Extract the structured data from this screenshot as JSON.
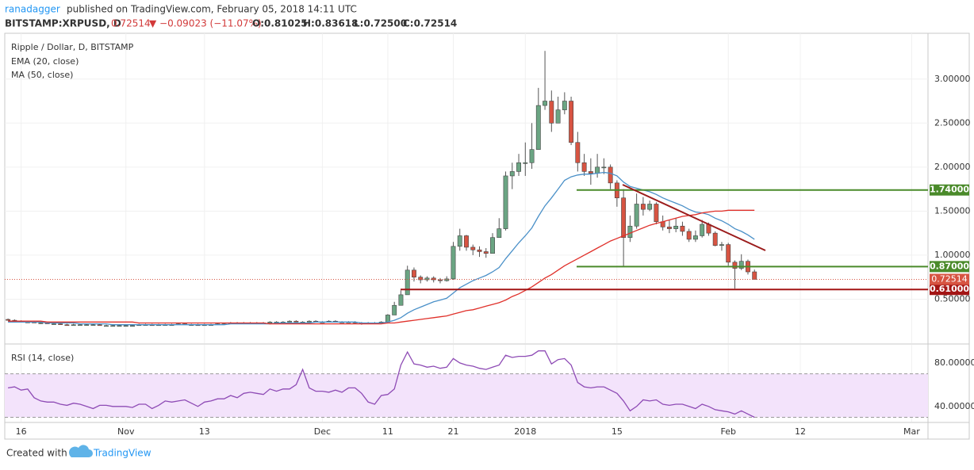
{
  "header": {
    "author": "ranadagger",
    "published": "published on TradingView.com, February 05, 2018 14:11 UTC",
    "symbol": "BITSTAMP:XRPUSD, D",
    "last": "0.72514",
    "change": "▼ −0.09023 (−11.07%)",
    "ohlc": [
      "O:0.81025",
      "H:0.83618",
      "L:0.72500",
      "C:0.72514"
    ]
  },
  "chart_data": [
    {
      "type": "candlestick",
      "title": "Ripple / Dollar, D, BITSTAMP",
      "categories": [
        null,
        null,
        "16",
        null,
        null,
        null,
        null,
        null,
        null,
        null,
        null,
        null,
        null,
        null,
        null,
        null,
        null,
        null,
        "Nov",
        null,
        null,
        null,
        null,
        null,
        null,
        null,
        null,
        null,
        null,
        null,
        "13",
        null,
        null,
        null,
        null,
        null,
        null,
        null,
        null,
        null,
        null,
        null,
        null,
        null,
        null,
        null,
        null,
        null,
        "Dec",
        null,
        null,
        null,
        null,
        null,
        null,
        null,
        null,
        null,
        "11",
        null,
        null,
        null,
        null,
        null,
        null,
        null,
        null,
        null,
        "21",
        null,
        null,
        null,
        null,
        null,
        null,
        null,
        null,
        null,
        null,
        "2018",
        null,
        null,
        null,
        null,
        null,
        null,
        null,
        null,
        null,
        null,
        null,
        null,
        null,
        "15",
        null,
        null,
        null,
        null,
        null,
        null,
        null,
        null,
        null,
        null,
        null,
        null,
        null,
        null,
        null,
        null,
        "Feb",
        null,
        null,
        null,
        null,
        null,
        null,
        null,
        null,
        null,
        null,
        "12",
        null,
        null,
        null,
        null,
        null,
        null,
        null,
        null,
        null,
        null,
        null,
        null,
        null,
        null,
        null,
        null,
        "Mar",
        null,
        null
      ],
      "open": [
        0.27,
        0.26,
        0.25,
        0.24,
        0.24,
        0.23,
        0.23,
        0.22,
        0.22,
        0.21,
        0.2,
        0.21,
        0.21,
        0.21,
        0.21,
        0.2,
        0.2,
        0.2,
        0.2,
        0.2,
        0.2,
        0.21,
        0.21,
        0.2,
        0.21,
        0.21,
        0.21,
        0.22,
        0.21,
        0.21,
        0.2,
        0.21,
        0.21,
        0.22,
        0.22,
        0.23,
        0.23,
        0.23,
        0.23,
        0.23,
        0.23,
        0.24,
        0.24,
        0.24,
        0.25,
        0.24,
        0.24,
        0.25,
        0.24,
        0.24,
        0.25,
        0.24,
        0.24,
        0.24,
        0.23,
        0.22,
        0.23,
        0.23,
        0.24,
        0.32,
        0.43,
        0.55,
        0.83,
        0.75,
        0.72,
        0.74,
        0.72,
        0.71,
        0.73,
        1.1,
        1.22,
        1.09,
        1.06,
        1.04,
        1.02,
        1.2,
        1.3,
        1.9,
        1.95,
        2.05,
        2.05,
        2.2,
        2.7,
        2.75,
        2.5,
        2.65,
        2.75,
        2.28,
        2.05,
        1.95,
        1.93,
        2.0,
        2.0,
        1.82,
        1.65,
        1.2,
        1.33,
        1.58,
        1.52,
        1.58,
        1.38,
        1.32,
        1.3,
        1.33,
        1.27,
        1.18,
        1.22,
        1.35,
        1.25,
        1.11,
        1.12,
        0.92,
        0.85,
        0.93,
        0.81025,
        null,
        null,
        null,
        null,
        null,
        null,
        null,
        null,
        null,
        null,
        null,
        null,
        null,
        null,
        null,
        null,
        null,
        null,
        null,
        null,
        null,
        null,
        null,
        null,
        null,
        null
      ],
      "high": [
        0.28,
        0.27,
        0.26,
        0.25,
        0.25,
        0.24,
        0.24,
        0.23,
        0.23,
        0.22,
        0.22,
        0.22,
        0.22,
        0.22,
        0.22,
        0.21,
        0.21,
        0.21,
        0.21,
        0.21,
        0.22,
        0.22,
        0.22,
        0.22,
        0.22,
        0.22,
        0.23,
        0.23,
        0.22,
        0.22,
        0.22,
        0.22,
        0.23,
        0.23,
        0.24,
        0.24,
        0.24,
        0.24,
        0.24,
        0.24,
        0.25,
        0.25,
        0.25,
        0.26,
        0.26,
        0.25,
        0.26,
        0.26,
        0.25,
        0.26,
        0.26,
        0.25,
        0.25,
        0.25,
        0.24,
        0.24,
        0.24,
        0.25,
        0.33,
        0.47,
        0.6,
        0.88,
        0.86,
        0.77,
        0.76,
        0.76,
        0.74,
        0.76,
        1.15,
        1.3,
        1.23,
        1.12,
        1.1,
        1.08,
        1.25,
        1.42,
        1.95,
        2.05,
        2.15,
        2.28,
        2.5,
        2.9,
        3.32,
        2.87,
        2.8,
        2.85,
        2.8,
        2.4,
        2.15,
        2.1,
        2.15,
        2.1,
        2.03,
        1.85,
        1.75,
        1.45,
        1.7,
        1.66,
        1.62,
        1.6,
        1.45,
        1.4,
        1.42,
        1.38,
        1.3,
        1.28,
        1.4,
        1.37,
        1.27,
        1.15,
        1.14,
        0.94,
        1.01,
        0.95,
        0.83618,
        null,
        null,
        null,
        null,
        null,
        null,
        null,
        null,
        null,
        null,
        null,
        null,
        null,
        null,
        null,
        null,
        null,
        null,
        null,
        null,
        null,
        null,
        null,
        null,
        null,
        null
      ],
      "low": [
        0.26,
        0.25,
        0.24,
        0.23,
        0.23,
        0.22,
        0.22,
        0.21,
        0.21,
        0.2,
        0.2,
        0.2,
        0.2,
        0.2,
        0.2,
        0.19,
        0.19,
        0.19,
        0.19,
        0.19,
        0.2,
        0.2,
        0.2,
        0.2,
        0.2,
        0.2,
        0.21,
        0.21,
        0.2,
        0.2,
        0.2,
        0.2,
        0.21,
        0.21,
        0.22,
        0.22,
        0.22,
        0.22,
        0.22,
        0.22,
        0.23,
        0.23,
        0.23,
        0.24,
        0.24,
        0.23,
        0.24,
        0.24,
        0.23,
        0.24,
        0.24,
        0.23,
        0.23,
        0.22,
        0.21,
        0.22,
        0.22,
        0.23,
        0.24,
        0.32,
        0.43,
        0.55,
        0.7,
        0.68,
        0.7,
        0.69,
        0.68,
        0.7,
        0.72,
        1.05,
        1.05,
        1.0,
        0.98,
        0.97,
        1.02,
        1.2,
        1.28,
        1.75,
        1.9,
        1.9,
        1.98,
        2.2,
        2.65,
        2.4,
        2.5,
        2.6,
        2.25,
        1.95,
        1.9,
        1.8,
        1.88,
        1.92,
        1.75,
        1.55,
        0.87,
        1.15,
        1.3,
        1.45,
        1.5,
        1.35,
        1.28,
        1.25,
        1.26,
        1.22,
        1.15,
        1.15,
        1.2,
        1.22,
        1.1,
        1.05,
        0.88,
        0.62,
        0.83,
        0.78,
        0.725,
        null,
        null,
        null,
        null,
        null,
        null,
        null,
        null,
        null,
        null,
        null,
        null,
        null,
        null,
        null,
        null,
        null,
        null,
        null,
        null,
        null,
        null,
        null,
        null,
        null,
        null
      ],
      "close": [
        0.26,
        0.25,
        0.24,
        0.24,
        0.23,
        0.23,
        0.22,
        0.22,
        0.21,
        0.2,
        0.21,
        0.21,
        0.21,
        0.21,
        0.2,
        0.2,
        0.2,
        0.2,
        0.2,
        0.2,
        0.21,
        0.21,
        0.2,
        0.21,
        0.21,
        0.21,
        0.22,
        0.21,
        0.21,
        0.2,
        0.21,
        0.21,
        0.22,
        0.22,
        0.23,
        0.23,
        0.23,
        0.23,
        0.23,
        0.23,
        0.24,
        0.24,
        0.24,
        0.25,
        0.24,
        0.24,
        0.25,
        0.24,
        0.24,
        0.25,
        0.24,
        0.24,
        0.24,
        0.23,
        0.22,
        0.23,
        0.23,
        0.24,
        0.32,
        0.43,
        0.55,
        0.83,
        0.75,
        0.72,
        0.74,
        0.72,
        0.71,
        0.73,
        1.1,
        1.22,
        1.09,
        1.06,
        1.04,
        1.02,
        1.2,
        1.3,
        1.9,
        1.95,
        2.05,
        2.05,
        2.2,
        2.7,
        2.75,
        2.5,
        2.65,
        2.75,
        2.28,
        2.05,
        1.95,
        1.93,
        2.0,
        2.0,
        1.82,
        1.65,
        1.2,
        1.33,
        1.58,
        1.52,
        1.58,
        1.38,
        1.32,
        1.3,
        1.33,
        1.27,
        1.18,
        1.22,
        1.35,
        1.25,
        1.11,
        1.12,
        0.92,
        0.85,
        0.93,
        0.81,
        0.72514,
        null,
        null,
        null,
        null,
        null,
        null,
        null,
        null,
        null,
        null,
        null,
        null,
        null,
        null,
        null,
        null,
        null,
        null,
        null,
        null,
        null,
        null,
        null,
        null,
        null,
        null
      ],
      "up_color": "#6ba583",
      "down_color": "#d75442",
      "series": [
        {
          "name": "EMA (20, close)",
          "color": "#4a90c8",
          "values": [
            0.24,
            0.24,
            0.24,
            0.24,
            0.24,
            0.24,
            0.23,
            0.23,
            0.23,
            0.23,
            0.23,
            0.22,
            0.22,
            0.22,
            0.22,
            0.22,
            0.21,
            0.21,
            0.21,
            0.21,
            0.21,
            0.21,
            0.21,
            0.21,
            0.21,
            0.21,
            0.21,
            0.21,
            0.21,
            0.21,
            0.21,
            0.21,
            0.21,
            0.21,
            0.22,
            0.22,
            0.22,
            0.22,
            0.22,
            0.22,
            0.22,
            0.23,
            0.23,
            0.23,
            0.23,
            0.23,
            0.23,
            0.24,
            0.24,
            0.24,
            0.24,
            0.24,
            0.24,
            0.24,
            0.23,
            0.23,
            0.23,
            0.23,
            0.24,
            0.26,
            0.29,
            0.34,
            0.38,
            0.41,
            0.44,
            0.47,
            0.49,
            0.51,
            0.57,
            0.63,
            0.67,
            0.71,
            0.74,
            0.77,
            0.81,
            0.86,
            0.96,
            1.05,
            1.14,
            1.22,
            1.31,
            1.44,
            1.56,
            1.65,
            1.75,
            1.85,
            1.89,
            1.91,
            1.92,
            1.92,
            1.93,
            1.94,
            1.93,
            1.9,
            1.83,
            1.78,
            1.76,
            1.74,
            1.72,
            1.69,
            1.65,
            1.62,
            1.59,
            1.56,
            1.52,
            1.49,
            1.48,
            1.46,
            1.42,
            1.39,
            1.35,
            1.3,
            1.27,
            1.23,
            1.18,
            null,
            null,
            null,
            null,
            null,
            null,
            null,
            null,
            null,
            null,
            null,
            null,
            null,
            null,
            null,
            null,
            null,
            null,
            null,
            null,
            null,
            null,
            null,
            null,
            null,
            null
          ]
        },
        {
          "name": "MA (50, close)",
          "color": "#e0302a",
          "values": [
            0.25,
            0.25,
            0.25,
            0.25,
            0.25,
            0.25,
            0.24,
            0.24,
            0.24,
            0.24,
            0.24,
            0.24,
            0.24,
            0.24,
            0.24,
            0.24,
            0.24,
            0.24,
            0.24,
            0.24,
            0.23,
            0.23,
            0.23,
            0.23,
            0.23,
            0.23,
            0.23,
            0.23,
            0.23,
            0.23,
            0.23,
            0.23,
            0.23,
            0.23,
            0.23,
            0.23,
            0.23,
            0.23,
            0.23,
            0.23,
            0.22,
            0.22,
            0.22,
            0.22,
            0.22,
            0.22,
            0.22,
            0.22,
            0.22,
            0.22,
            0.22,
            0.22,
            0.22,
            0.22,
            0.22,
            0.22,
            0.22,
            0.22,
            0.23,
            0.23,
            0.24,
            0.25,
            0.26,
            0.27,
            0.28,
            0.29,
            0.3,
            0.31,
            0.33,
            0.35,
            0.37,
            0.38,
            0.4,
            0.42,
            0.44,
            0.46,
            0.49,
            0.53,
            0.56,
            0.6,
            0.64,
            0.69,
            0.74,
            0.78,
            0.83,
            0.88,
            0.92,
            0.96,
            1.0,
            1.04,
            1.08,
            1.12,
            1.16,
            1.19,
            1.22,
            1.25,
            1.28,
            1.31,
            1.34,
            1.36,
            1.38,
            1.4,
            1.42,
            1.44,
            1.45,
            1.46,
            1.48,
            1.49,
            1.5,
            1.5,
            1.51,
            1.51,
            1.51,
            1.51,
            1.51,
            null,
            null,
            null,
            null,
            null,
            null,
            null,
            null,
            null,
            null,
            null,
            null,
            null,
            null,
            null,
            null,
            null,
            null,
            null,
            null,
            null,
            null,
            null,
            null,
            null,
            null
          ]
        }
      ],
      "ylim": [
        0,
        3.52
      ],
      "yticks": [
        {
          "value": 0.5,
          "label": "0.50000"
        },
        {
          "value": 1,
          "label": "1.00000"
        },
        {
          "value": 1.5,
          "label": "1.50000"
        },
        {
          "value": 2,
          "label": "2.00000"
        },
        {
          "value": 2.5,
          "label": "2.50000"
        },
        {
          "value": 3,
          "label": "3.00000"
        }
      ],
      "levels": [
        {
          "value": 1.74,
          "label": "1.74000",
          "color": "#4a8a2a"
        },
        {
          "value": 0.87,
          "label": "0.87000",
          "color": "#4a8a2a"
        },
        {
          "value": 0.61,
          "label": "0.61000",
          "color": "#a31515"
        }
      ],
      "grid": true
    },
    {
      "type": "line",
      "series": [
        {
          "name": "RSI (14, close)",
          "color": "#8e4bb5",
          "values": [
            57,
            58,
            55,
            56,
            48,
            45,
            44,
            44,
            42,
            41,
            43,
            42,
            40,
            38,
            41,
            41,
            40,
            40,
            40,
            39,
            42,
            42,
            38,
            41,
            45,
            44,
            45,
            46,
            43,
            40,
            44,
            45,
            47,
            47,
            50,
            48,
            52,
            53,
            52,
            51,
            56,
            54,
            56,
            56,
            60,
            74,
            57,
            54,
            54,
            53,
            55,
            53,
            57,
            57,
            52,
            44,
            42,
            50,
            51,
            56,
            78,
            90,
            79,
            78,
            76,
            77,
            75,
            76,
            84,
            80,
            78,
            77,
            75,
            74,
            76,
            78,
            87,
            85,
            86,
            86,
            87,
            91,
            91,
            79,
            83,
            84,
            78,
            62,
            58,
            57,
            58,
            58,
            55,
            52,
            45,
            36,
            40,
            46,
            45,
            46,
            42,
            41,
            42,
            42,
            40,
            38,
            42,
            40,
            37,
            36,
            35,
            33,
            36,
            33,
            30,
            null,
            null,
            null,
            null,
            null,
            null,
            null,
            null,
            null,
            null,
            null,
            null,
            null,
            null,
            null,
            null,
            null,
            null,
            null,
            null,
            null,
            null,
            null,
            null,
            null,
            null
          ]
        }
      ],
      "ylim": [
        26,
        93
      ],
      "yticks": [
        {
          "value": 40,
          "label": "40.00000"
        },
        {
          "value": 80,
          "label": "80.00000"
        }
      ],
      "band": [
        30,
        70
      ],
      "band_color": "#f3e3fb"
    }
  ],
  "footer": {
    "created_with": "Created with",
    "brand": "TradingView"
  }
}
